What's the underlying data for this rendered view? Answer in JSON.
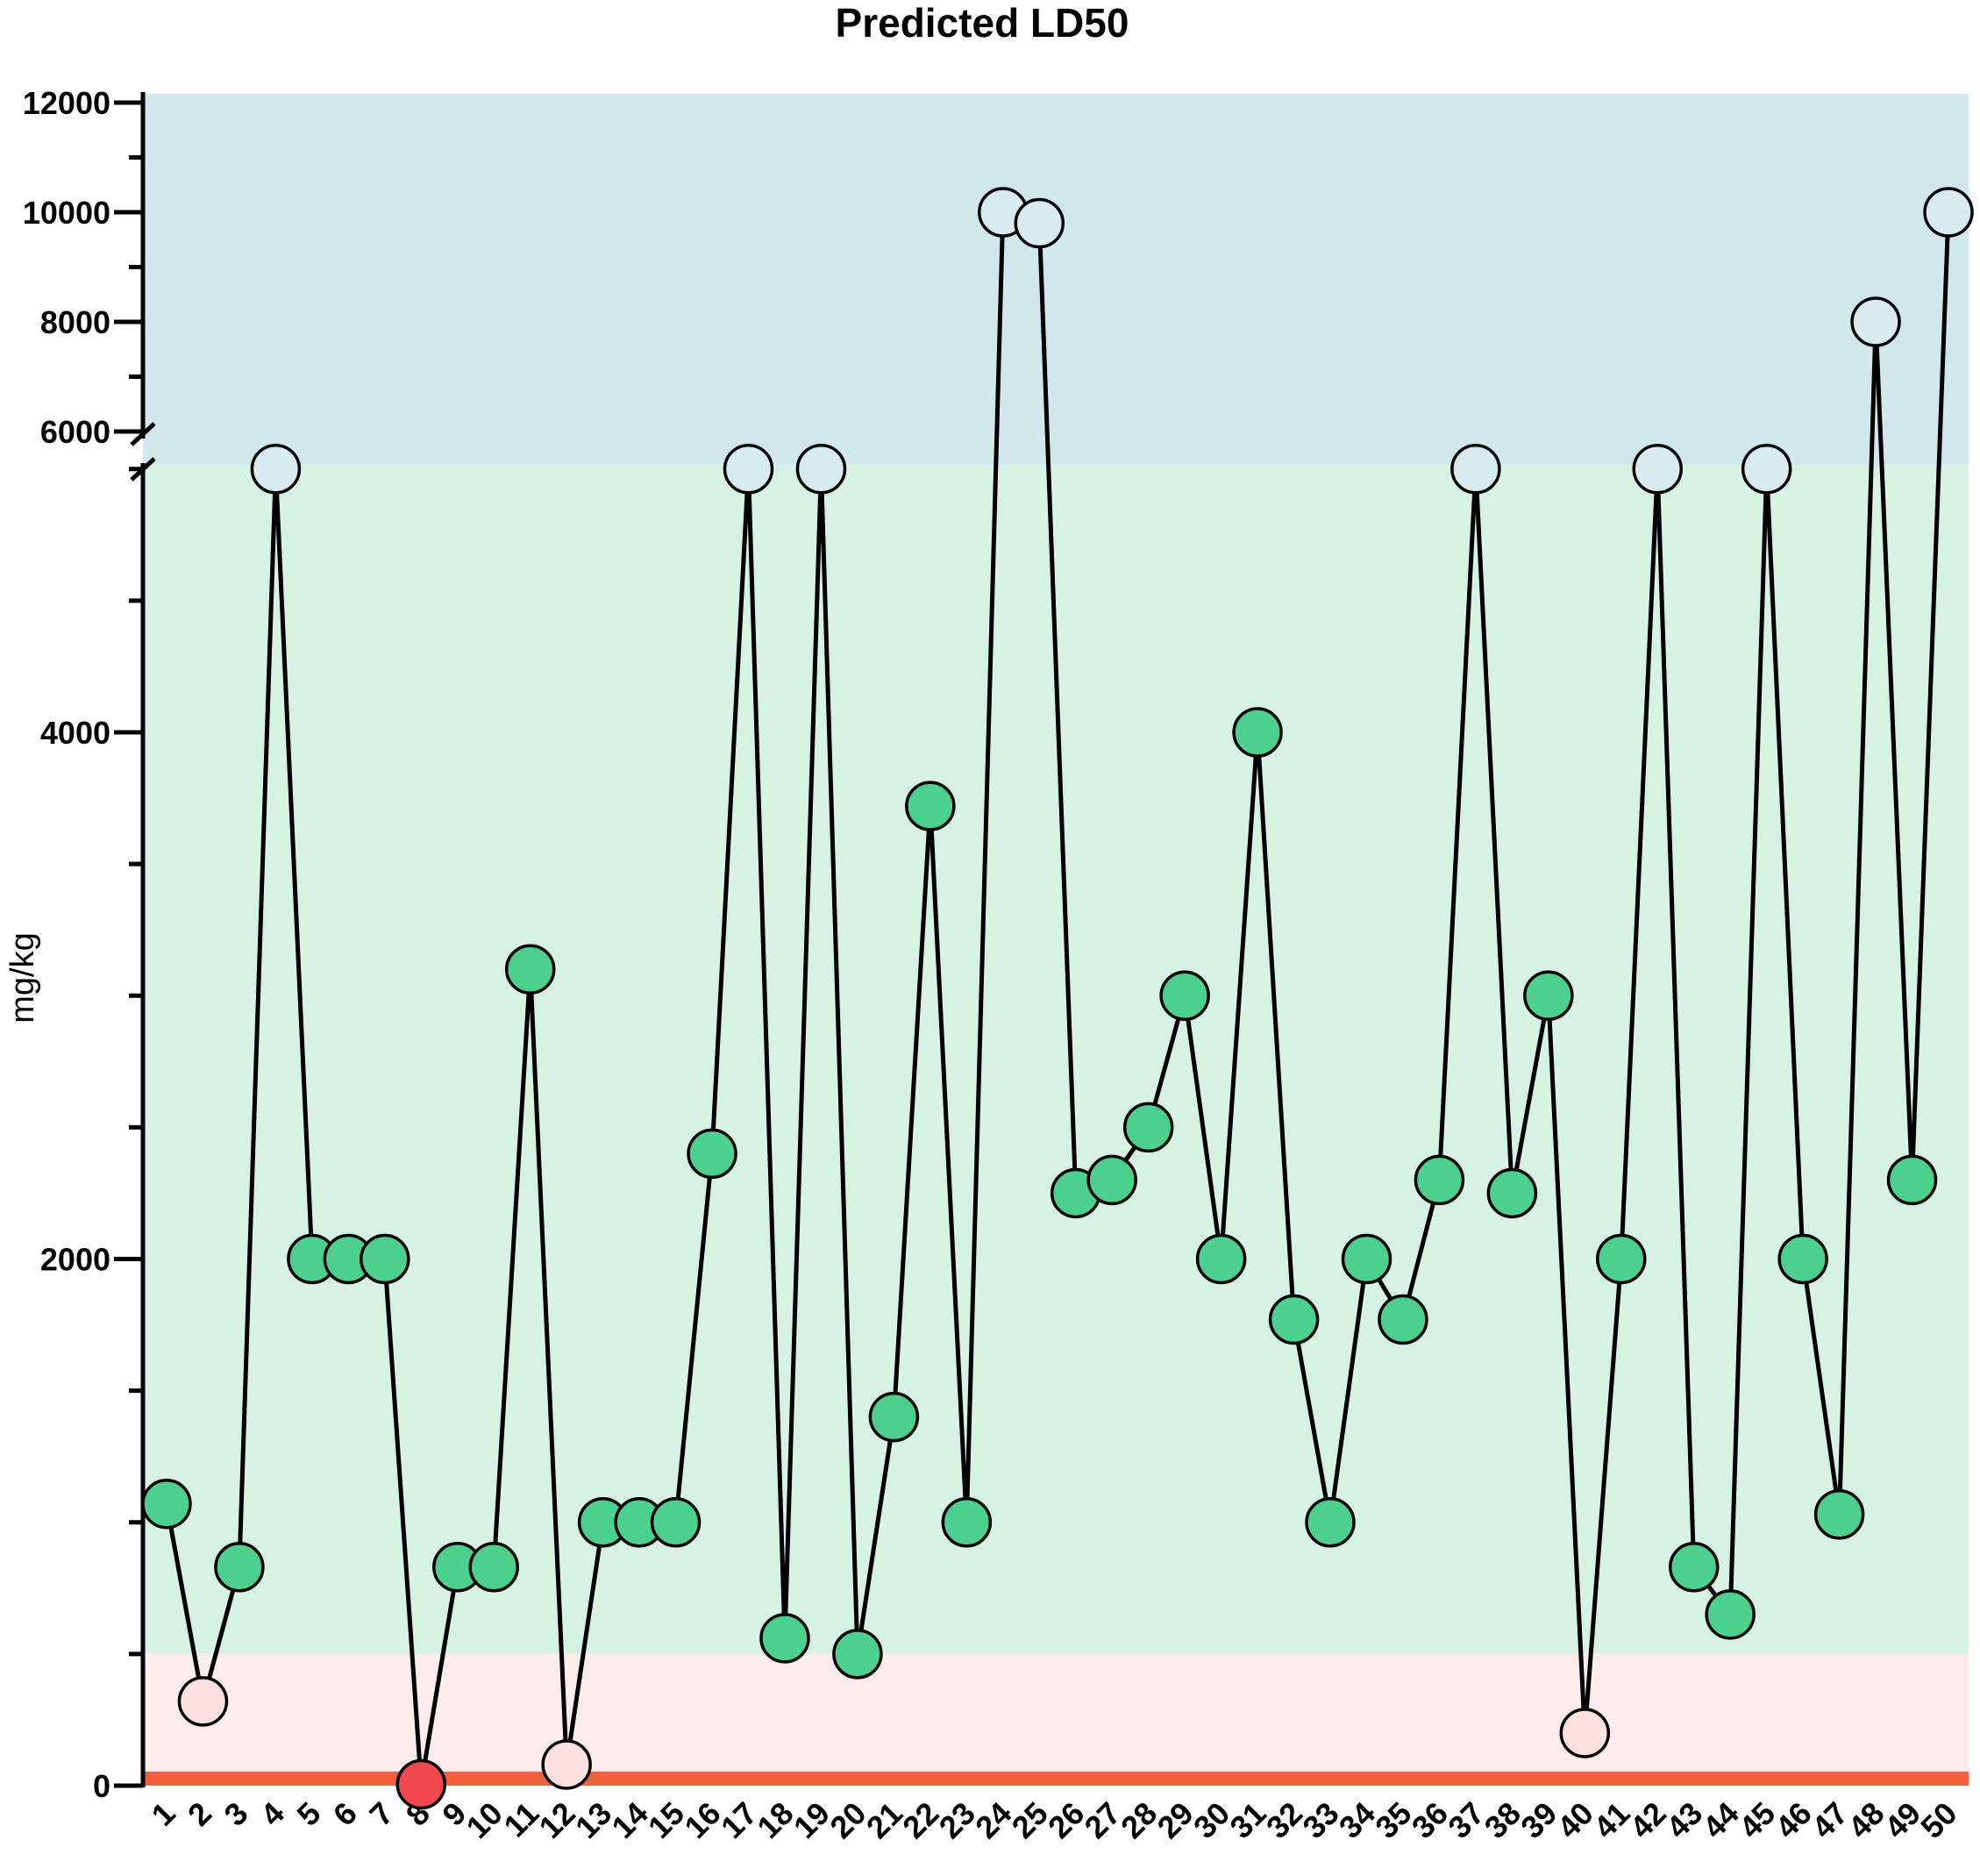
{
  "chart_data": {
    "type": "line",
    "title": "Predicted LD50",
    "xlabel": "",
    "ylabel": "mg/kg",
    "y_axis_break": {
      "lower_max": 5500,
      "upper_min": 6000
    },
    "ylim": [
      0,
      12000
    ],
    "lower_y_ticks": [
      0,
      2000,
      4000
    ],
    "upper_y_ticks": [
      6000,
      8000,
      10000,
      12000
    ],
    "bands": [
      {
        "from": 0,
        "to": 50,
        "color": "#f2613f"
      },
      {
        "from": 50,
        "to": 500,
        "color": "#fdeceb"
      },
      {
        "from": 500,
        "to": 5000,
        "color": "#d5f2e3"
      },
      {
        "from": 5000,
        "to": 12000,
        "color": "#d0e8ec"
      }
    ],
    "marker_colors": {
      "very_toxic": "#f2494f",
      "toxic": "#fde0e2",
      "moderate": "#4cd08e",
      "low": "#d8ecf0"
    },
    "line_color": "#000000",
    "categories": [
      "1",
      "2",
      "3",
      "4",
      "5",
      "6",
      "7",
      "8",
      "9",
      "10",
      "11",
      "12",
      "13",
      "14",
      "15",
      "16",
      "17",
      "18",
      "19",
      "20",
      "21",
      "22",
      "23",
      "24",
      "25",
      "26",
      "27",
      "28",
      "29",
      "30",
      "31",
      "32",
      "33",
      "34",
      "35",
      "36",
      "37",
      "38",
      "39",
      "40",
      "41",
      "42",
      "43",
      "44",
      "45",
      "46",
      "47",
      "48",
      "49",
      "50"
    ],
    "values": [
      1070,
      320,
      830,
      5000,
      2000,
      2000,
      2000,
      5,
      830,
      830,
      3100,
      80,
      1000,
      1000,
      1000,
      2400,
      5000,
      560,
      5000,
      500,
      1400,
      3720,
      1000,
      10000,
      9800,
      2250,
      2300,
      2500,
      3000,
      2000,
      4000,
      1770,
      1000,
      2000,
      1770,
      2300,
      5000,
      2250,
      3000,
      200,
      2000,
      5000,
      830,
      650,
      5000,
      2000,
      1030,
      8000,
      2300,
      10000
    ]
  }
}
